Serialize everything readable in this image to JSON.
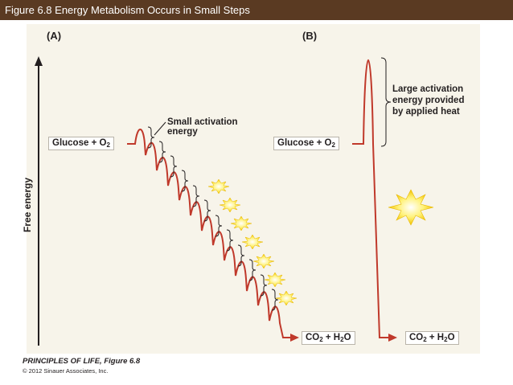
{
  "header": {
    "title": "Figure 6.8  Energy Metabolism Occurs in Small Steps",
    "bar_color": "#5a3a22"
  },
  "panels": {
    "a": {
      "label": "(A)",
      "reactants": {
        "base": "Glucose + O",
        "sub": "2"
      },
      "products": {
        "a": "CO",
        "sub1": "2",
        "b": " + H",
        "sub2": "2",
        "c": "O"
      },
      "annotation_line1": "Small activation",
      "annotation_line2": "energy",
      "steps": 10,
      "energy_icon": "sunburst-icon"
    },
    "b": {
      "label": "(B)",
      "reactants": {
        "base": "Glucose + O",
        "sub": "2"
      },
      "products": {
        "a": "CO",
        "sub1": "2",
        "b": " + H",
        "sub2": "2",
        "c": "O"
      },
      "annotation_line1": "Large activation",
      "annotation_line2": "energy provided",
      "annotation_line3": "by applied heat",
      "energy_icon": "sunburst-icon"
    }
  },
  "axis": {
    "ylabel": "Free energy"
  },
  "credit": {
    "line1": "PRINCIPLES OF LIFE, Figure 6.8",
    "line2": "© 2012 Sinauer Associates, Inc."
  },
  "colors": {
    "curve": "#c0392b",
    "axis": "#231f20",
    "background": "#f7f4ea"
  }
}
